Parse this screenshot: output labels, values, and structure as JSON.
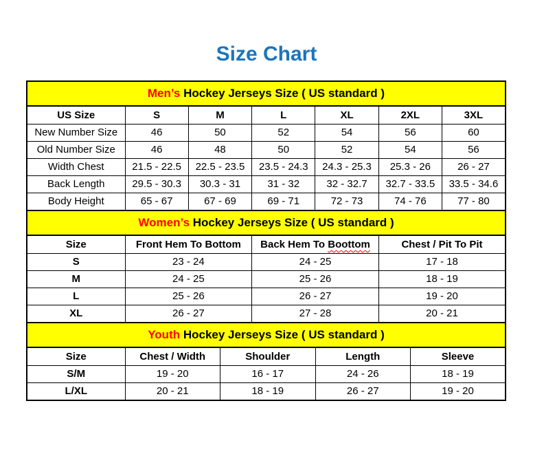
{
  "page": {
    "title": "Size Chart"
  },
  "colors": {
    "title_blue": "#1b75bc",
    "band_yellow": "#ffff00",
    "accent_red": "#ff0000",
    "border_black": "#000000",
    "background": "#ffffff"
  },
  "mens_table": {
    "title_accent": "Men’s",
    "title_rest": " Hockey Jerseys Size ( US standard )",
    "columns": [
      "US Size",
      "S",
      "M",
      "L",
      "XL",
      "2XL",
      "3XL"
    ],
    "rows": [
      {
        "label": "New Number Size",
        "values": [
          "46",
          "50",
          "52",
          "54",
          "56",
          "60"
        ]
      },
      {
        "label": "Old Number Size",
        "values": [
          "46",
          "48",
          "50",
          "52",
          "54",
          "56"
        ]
      },
      {
        "label": "Width Chest",
        "values": [
          "21.5 - 22.5",
          "22.5 - 23.5",
          "23.5 - 24.3",
          "24.3 - 25.3",
          "25.3 - 26",
          "26 - 27"
        ]
      },
      {
        "label": "Back Length",
        "values": [
          "29.5 - 30.3",
          "30.3 - 31",
          "31 - 32",
          "32 - 32.7",
          "32.7 - 33.5",
          "33.5 - 34.6"
        ]
      },
      {
        "label": "Body Height",
        "values": [
          "65 - 67",
          "67 - 69",
          "69 - 71",
          "72 - 73",
          "74 - 76",
          "77 - 80"
        ]
      }
    ]
  },
  "womens_table": {
    "title_accent": "Women’s",
    "title_rest": " Hockey Jerseys Size ( US standard )",
    "columns": [
      "Size",
      "Front Hem To Bottom",
      "Back Hem To Boottom",
      "Chest / Pit To Pit"
    ],
    "back_hem_prefix": "Back Hem To ",
    "back_hem_misspelled": "Boottom",
    "rows": [
      {
        "label": "S",
        "values": [
          "23 - 24",
          "24 - 25",
          "17 - 18"
        ]
      },
      {
        "label": "M",
        "values": [
          "24 - 25",
          "25 - 26",
          "18 - 19"
        ]
      },
      {
        "label": "L",
        "values": [
          "25 - 26",
          "26 - 27",
          "19 - 20"
        ]
      },
      {
        "label": "XL",
        "values": [
          "26 - 27",
          "27 - 28",
          "20 - 21"
        ]
      }
    ]
  },
  "youth_table": {
    "title_accent": "Youth",
    "title_rest": " Hockey Jerseys Size ( US standard )",
    "columns": [
      "Size",
      "Chest / Width",
      "Shoulder",
      "Length",
      "Sleeve"
    ],
    "rows": [
      {
        "label": "S/M",
        "values": [
          "19 - 20",
          "16 - 17",
          "24 - 26",
          "18 - 19"
        ]
      },
      {
        "label": "L/XL",
        "values": [
          "20 - 21",
          "18 - 19",
          "26 - 27",
          "19 - 20"
        ]
      }
    ]
  }
}
